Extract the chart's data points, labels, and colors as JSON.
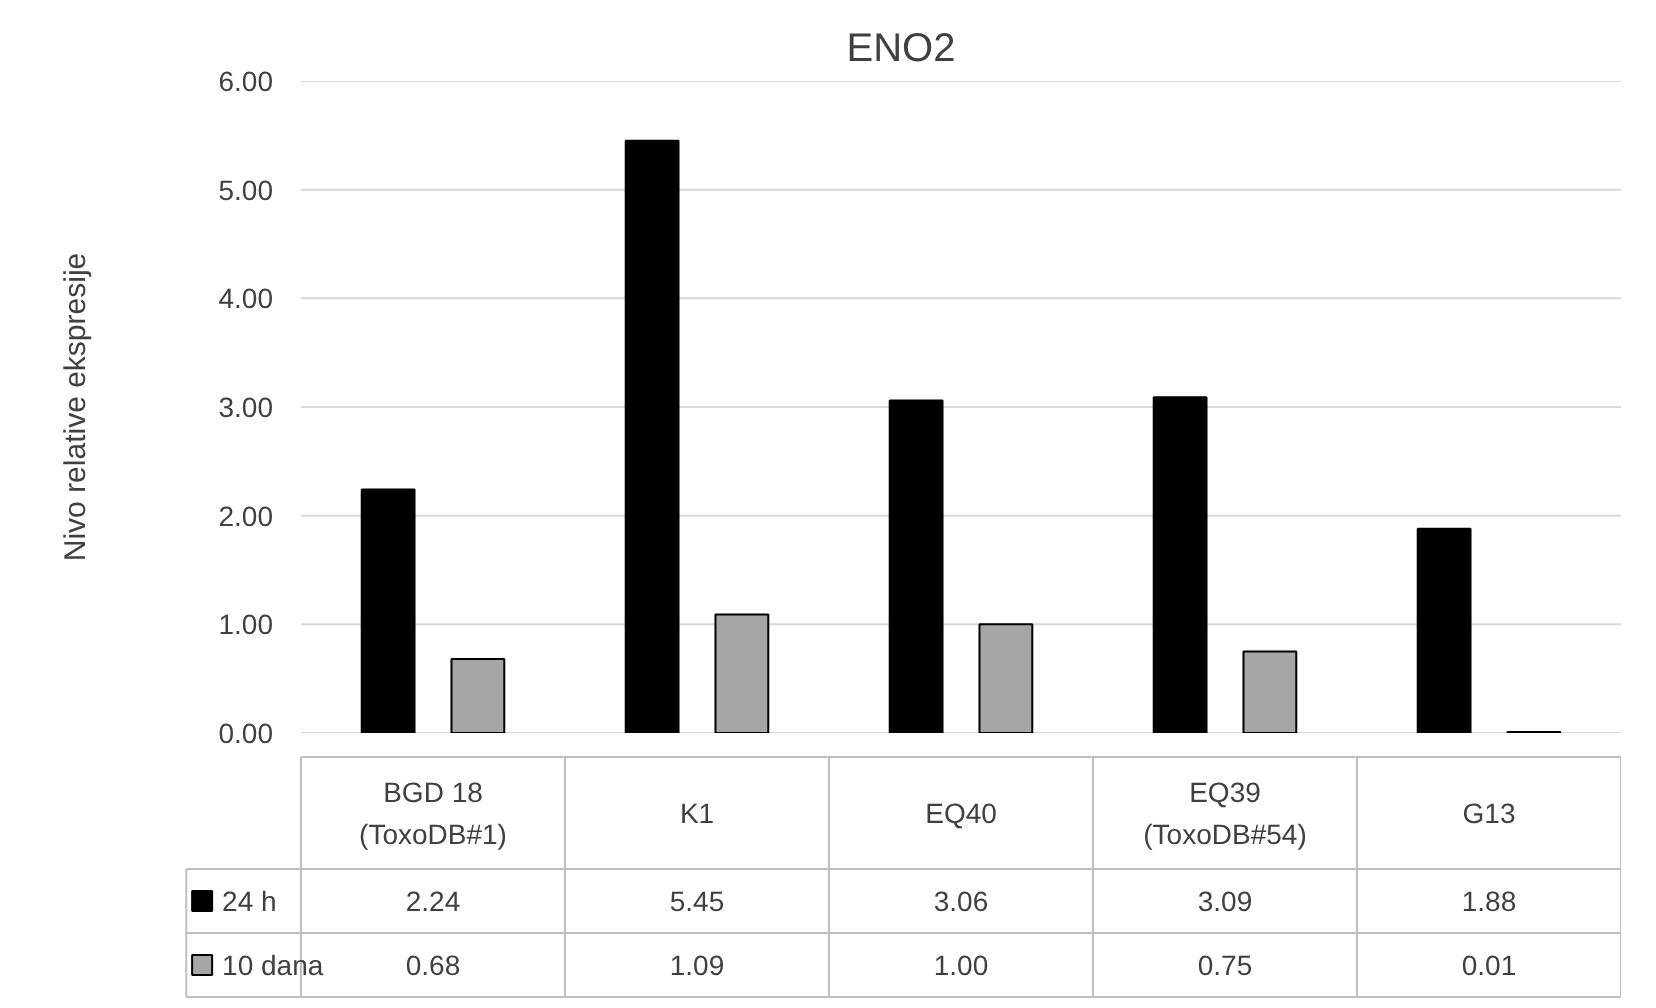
{
  "chart_data": {
    "type": "bar",
    "title": "ENO2",
    "ylabel": "Nivo relative ekspresije",
    "categories": [
      "BGD 18\n(ToxoDB#1)",
      "K1",
      "EQ40",
      "EQ39\n(ToxoDB#54)",
      "G13"
    ],
    "series": [
      {
        "name": "24 h",
        "color": "#000000",
        "values": [
          2.24,
          5.45,
          3.06,
          3.09,
          1.88
        ],
        "value_labels": [
          "2.24",
          "5.45",
          "3.06",
          "3.09",
          "1.88"
        ]
      },
      {
        "name": "10 dana",
        "color": "#a6a6a6",
        "values": [
          0.68,
          1.09,
          1.0,
          0.75,
          0.01
        ],
        "value_labels": [
          "0.68",
          "1.09",
          "1.00",
          "0.75",
          "0.01"
        ]
      }
    ],
    "ylim": [
      0,
      6
    ],
    "yticks": [
      {
        "value": 0,
        "label": "0.00"
      },
      {
        "value": 1,
        "label": "1.00"
      },
      {
        "value": 2,
        "label": "2.00"
      },
      {
        "value": 3,
        "label": "3.00"
      },
      {
        "value": 4,
        "label": "4.00"
      },
      {
        "value": 5,
        "label": "5.00"
      },
      {
        "value": 6,
        "label": "6.00"
      }
    ],
    "grid": "y",
    "legend": "bottom"
  }
}
